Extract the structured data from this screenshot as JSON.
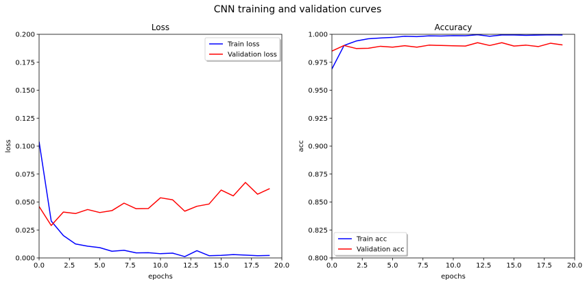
{
  "figure": {
    "suptitle": "CNN training and validation curves"
  },
  "chart_data": [
    {
      "type": "line",
      "title": "Loss",
      "xlabel": "epochs",
      "ylabel": "loss",
      "xlim": [
        0,
        20
      ],
      "ylim": [
        0,
        0.2
      ],
      "xticks": [
        0,
        2.5,
        5,
        7.5,
        10,
        12.5,
        15,
        17.5,
        20
      ],
      "xtick_labels": [
        "0.0",
        "2.5",
        "5.0",
        "7.5",
        "10.0",
        "12.5",
        "15.0",
        "17.5",
        "20.0"
      ],
      "yticks": [
        0,
        0.025,
        0.05,
        0.075,
        0.1,
        0.125,
        0.15,
        0.175,
        0.2
      ],
      "ytick_labels": [
        "0.000",
        "0.025",
        "0.050",
        "0.075",
        "0.100",
        "0.125",
        "0.150",
        "0.175",
        "0.200"
      ],
      "grid": false,
      "legend_position": "upper right",
      "x": [
        0,
        1,
        2,
        3,
        4,
        5,
        6,
        7,
        8,
        9,
        10,
        11,
        12,
        13,
        14,
        15,
        16,
        17,
        18,
        19
      ],
      "series": [
        {
          "name": "Train loss",
          "color": "#0000ff",
          "values": [
            0.104,
            0.033,
            0.02,
            0.0125,
            0.0105,
            0.0092,
            0.006,
            0.0068,
            0.0045,
            0.0047,
            0.0038,
            0.0043,
            0.0012,
            0.0065,
            0.002,
            0.0023,
            0.003,
            0.0025,
            0.002,
            0.0022
          ]
        },
        {
          "name": "Validation loss",
          "color": "#ff0000",
          "values": [
            0.046,
            0.029,
            0.041,
            0.0397,
            0.0433,
            0.0406,
            0.0423,
            0.049,
            0.044,
            0.0442,
            0.0538,
            0.052,
            0.0418,
            0.0462,
            0.0482,
            0.0607,
            0.0555,
            0.0675,
            0.057,
            0.062
          ]
        }
      ]
    },
    {
      "type": "line",
      "title": "Accuracy",
      "xlabel": "epochs",
      "ylabel": "acc",
      "xlim": [
        0,
        20
      ],
      "ylim": [
        0.8,
        1.0
      ],
      "xticks": [
        0,
        2.5,
        5,
        7.5,
        10,
        12.5,
        15,
        17.5,
        20
      ],
      "xtick_labels": [
        "0.0",
        "2.5",
        "5.0",
        "7.5",
        "10.0",
        "12.5",
        "15.0",
        "17.5",
        "20.0"
      ],
      "yticks": [
        0.8,
        0.825,
        0.85,
        0.875,
        0.9,
        0.925,
        0.95,
        0.975,
        1.0
      ],
      "ytick_labels": [
        "0.800",
        "0.825",
        "0.850",
        "0.875",
        "0.900",
        "0.925",
        "0.950",
        "0.975",
        "1.000"
      ],
      "grid": false,
      "legend_position": "lower left",
      "x": [
        0,
        1,
        2,
        3,
        4,
        5,
        6,
        7,
        8,
        9,
        10,
        11,
        12,
        13,
        14,
        15,
        16,
        17,
        18,
        19
      ],
      "series": [
        {
          "name": "Train acc",
          "color": "#0000ff",
          "values": [
            0.969,
            0.99,
            0.994,
            0.996,
            0.9967,
            0.9972,
            0.9982,
            0.9979,
            0.9986,
            0.9985,
            0.9988,
            0.9987,
            0.9996,
            0.9982,
            0.9994,
            0.9994,
            0.9991,
            0.9993,
            0.9995,
            0.9994
          ]
        },
        {
          "name": "Validation acc",
          "color": "#ff0000",
          "values": [
            0.985,
            0.99,
            0.9873,
            0.9875,
            0.9893,
            0.9885,
            0.9898,
            0.9885,
            0.9903,
            0.99,
            0.9897,
            0.9895,
            0.9925,
            0.99,
            0.9925,
            0.9895,
            0.9903,
            0.989,
            0.992,
            0.9905
          ]
        }
      ]
    }
  ]
}
